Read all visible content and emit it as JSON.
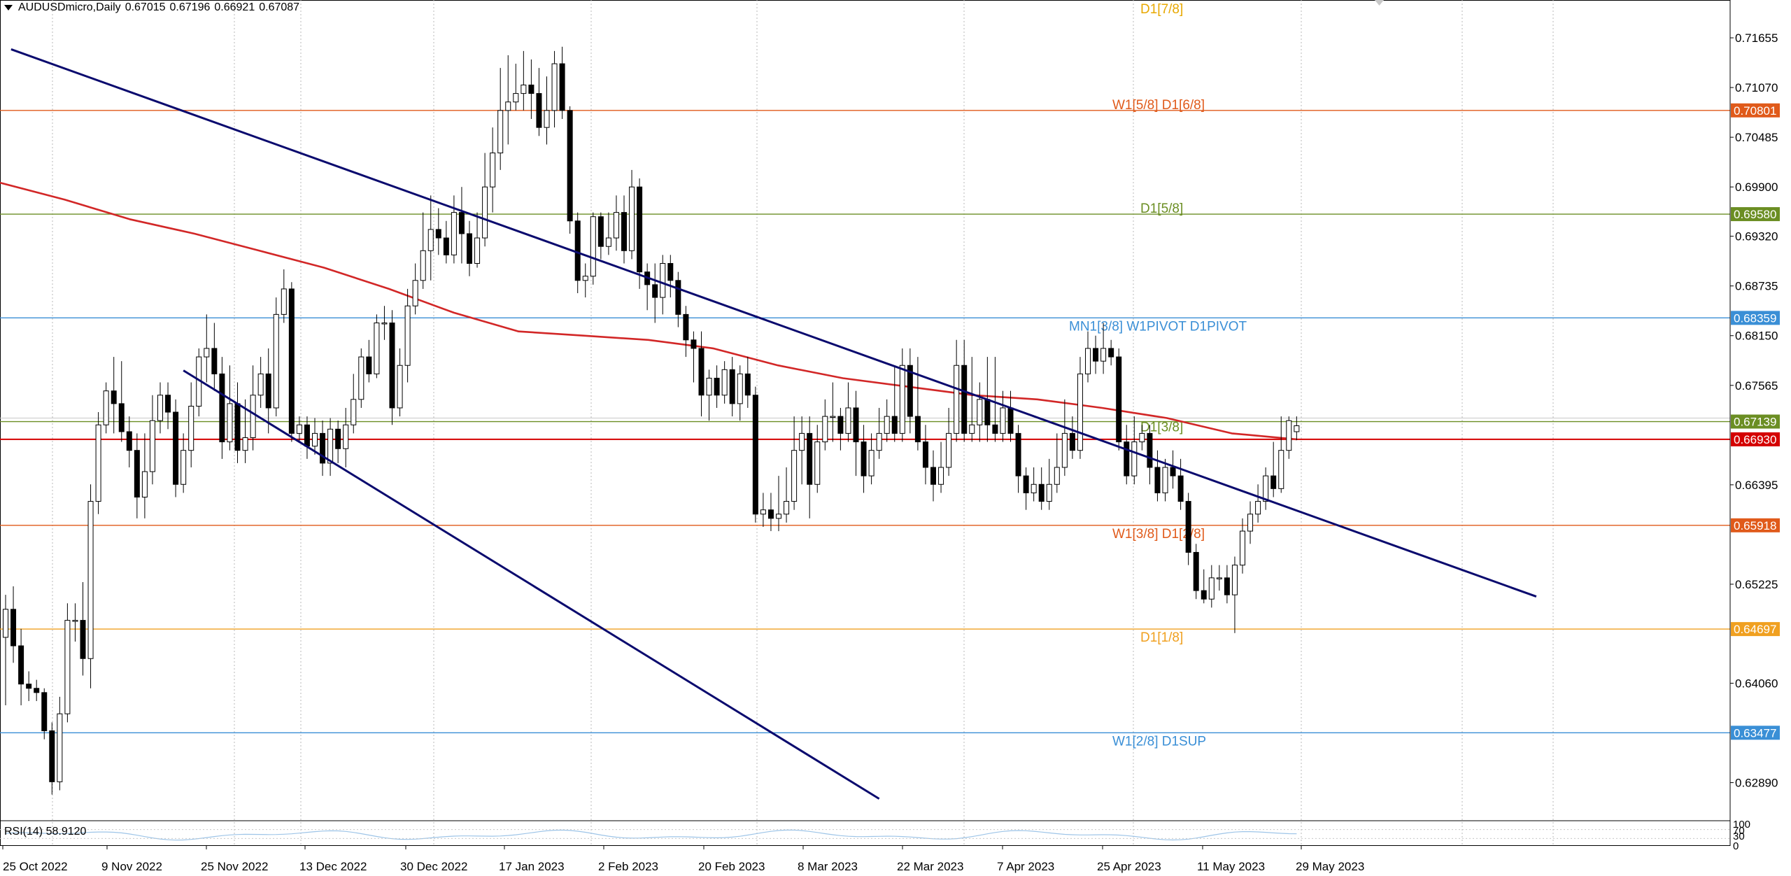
{
  "header": {
    "symbol": "AUDUSDmicro,Daily",
    "open": "0.67015",
    "high": "0.67196",
    "low": "0.66921",
    "close": "0.67087"
  },
  "rsi": {
    "label": "RSI(14) 58.9120",
    "levels": [
      "100",
      "70",
      "30",
      "0"
    ]
  },
  "colors": {
    "background": "#ffffff",
    "grid": "#b8b8b8",
    "bull_body": "#ffffff",
    "bear_body": "#000000",
    "wick": "#000000",
    "ma": "#d22727",
    "channel": "#0a0a6e",
    "axis_text": "#000000"
  },
  "chart_data": {
    "type": "candlestick",
    "y_axis_labels": [
      "0.71655",
      "0.71070",
      "0.70485",
      "0.69900",
      "0.69320",
      "0.68735",
      "0.68150",
      "0.67565",
      "0.66395",
      "0.65225",
      "0.64060",
      "0.62890"
    ],
    "ylim": [
      0.6245,
      0.721
    ],
    "x_axis_labels": [
      "25 Oct 2022",
      "9 Nov 2022",
      "25 Nov 2022",
      "13 Dec 2022",
      "30 Dec 2022",
      "17 Jan 2023",
      "2 Feb 2023",
      "20 Feb 2023",
      "8 Mar 2023",
      "22 Mar 2023",
      "7 Apr 2023",
      "25 Apr 2023",
      "11 May 2023",
      "29 May 2023"
    ],
    "levels": [
      {
        "label": "D1[7/8]",
        "price": null,
        "color": "#e8a800",
        "tag": ""
      },
      {
        "label": "W1[5/8] D1[6/8]",
        "price": 0.70801,
        "color": "#e05a1a",
        "tag": "0.70801"
      },
      {
        "label": "D1[5/8]",
        "price": 0.6958,
        "color": "#6b8e23",
        "tag": "0.69580"
      },
      {
        "label": "MN1[3/8] W1PIVOT D1PIVOT",
        "price": 0.68359,
        "color": "#3a8fd6",
        "tag": "0.68359"
      },
      {
        "label": "D1[3/8]",
        "price": 0.67139,
        "color": "#6b8e23",
        "tag": "0.67139"
      },
      {
        "label": "",
        "price": 0.6693,
        "color": "#d40000",
        "tag": "0.66930"
      },
      {
        "label": "W1[3/8] D1[2/8]",
        "price": 0.65918,
        "color": "#e05a1a",
        "tag": "0.65918"
      },
      {
        "label": "D1[1/8]",
        "price": 0.64697,
        "color": "#f0a020",
        "tag": "0.64697"
      },
      {
        "label": "W1[2/8] D1SUP",
        "price": 0.63477,
        "color": "#3a8fd6",
        "tag": "0.63477"
      }
    ],
    "ma200": [
      0.6995,
      0.6975,
      0.6952,
      0.6935,
      0.6915,
      0.6895,
      0.687,
      0.6842,
      0.682,
      0.6815,
      0.681,
      0.68,
      0.678,
      0.6765,
      0.6755,
      0.6745,
      0.674,
      0.673,
      0.6718,
      0.67,
      0.6693
    ],
    "channel_upper": [
      [
        0.713,
        0.7152
      ],
      [
        19.8,
        0.6508
      ]
    ],
    "channel_lower": [
      [
        2.3,
        0.6774
      ],
      [
        11.3,
        0.627
      ]
    ],
    "candles": [
      [
        0.646,
        0.6493,
        0.638,
        0.651
      ],
      [
        0.6493,
        0.645,
        0.643,
        0.652
      ],
      [
        0.645,
        0.6405,
        0.638,
        0.647
      ],
      [
        0.6405,
        0.64,
        0.6385,
        0.642
      ],
      [
        0.64,
        0.6395,
        0.6385,
        0.641
      ],
      [
        0.6395,
        0.635,
        0.634,
        0.64
      ],
      [
        0.635,
        0.629,
        0.6275,
        0.636
      ],
      [
        0.629,
        0.637,
        0.628,
        0.639
      ],
      [
        0.637,
        0.648,
        0.636,
        0.65
      ],
      [
        0.648,
        0.648,
        0.6455,
        0.65
      ],
      [
        0.648,
        0.6435,
        0.6415,
        0.6525
      ],
      [
        0.6435,
        0.662,
        0.64,
        0.664
      ],
      [
        0.662,
        0.671,
        0.6605,
        0.6725
      ],
      [
        0.671,
        0.675,
        0.67,
        0.676
      ],
      [
        0.675,
        0.6735,
        0.67,
        0.679
      ],
      [
        0.6735,
        0.6702,
        0.669,
        0.6785
      ],
      [
        0.6702,
        0.668,
        0.666,
        0.672
      ],
      [
        0.668,
        0.6625,
        0.66,
        0.67
      ],
      [
        0.6625,
        0.6655,
        0.66,
        0.67
      ],
      [
        0.6655,
        0.6715,
        0.664,
        0.6745
      ],
      [
        0.6715,
        0.6745,
        0.67,
        0.676
      ],
      [
        0.6745,
        0.6725,
        0.6705,
        0.676
      ],
      [
        0.6725,
        0.664,
        0.6625,
        0.674
      ],
      [
        0.664,
        0.668,
        0.663,
        0.67
      ],
      [
        0.668,
        0.6732,
        0.666,
        0.676
      ],
      [
        0.6732,
        0.679,
        0.672,
        0.68
      ],
      [
        0.679,
        0.68,
        0.676,
        0.684
      ],
      [
        0.68,
        0.677,
        0.675,
        0.683
      ],
      [
        0.677,
        0.669,
        0.667,
        0.679
      ],
      [
        0.669,
        0.6735,
        0.668,
        0.678
      ],
      [
        0.6735,
        0.668,
        0.6665,
        0.676
      ],
      [
        0.668,
        0.6695,
        0.6665,
        0.674
      ],
      [
        0.6695,
        0.6745,
        0.668,
        0.678
      ],
      [
        0.6745,
        0.677,
        0.673,
        0.679
      ],
      [
        0.677,
        0.673,
        0.67,
        0.68
      ],
      [
        0.673,
        0.684,
        0.672,
        0.686
      ],
      [
        0.684,
        0.687,
        0.683,
        0.6893
      ],
      [
        0.687,
        0.67,
        0.669,
        0.6878
      ],
      [
        0.67,
        0.671,
        0.669,
        0.672
      ],
      [
        0.671,
        0.6685,
        0.667,
        0.672
      ],
      [
        0.6685,
        0.67,
        0.6675,
        0.6718
      ],
      [
        0.67,
        0.6665,
        0.665,
        0.6715
      ],
      [
        0.6665,
        0.6705,
        0.665,
        0.6718
      ],
      [
        0.6705,
        0.6682,
        0.6665,
        0.6715
      ],
      [
        0.6682,
        0.671,
        0.666,
        0.673
      ],
      [
        0.671,
        0.674,
        0.67,
        0.677
      ],
      [
        0.674,
        0.679,
        0.673,
        0.68
      ],
      [
        0.679,
        0.677,
        0.676,
        0.681
      ],
      [
        0.677,
        0.683,
        0.6765,
        0.684
      ],
      [
        0.683,
        0.683,
        0.681,
        0.685
      ],
      [
        0.683,
        0.673,
        0.671,
        0.6845
      ],
      [
        0.673,
        0.678,
        0.672,
        0.68
      ],
      [
        0.678,
        0.685,
        0.676,
        0.687
      ],
      [
        0.685,
        0.688,
        0.684,
        0.69
      ],
      [
        0.688,
        0.6915,
        0.687,
        0.696
      ],
      [
        0.6915,
        0.694,
        0.688,
        0.698
      ],
      [
        0.694,
        0.693,
        0.691,
        0.6965
      ],
      [
        0.693,
        0.691,
        0.69,
        0.695
      ],
      [
        0.691,
        0.696,
        0.69,
        0.698
      ],
      [
        0.696,
        0.6935,
        0.69,
        0.699
      ],
      [
        0.6935,
        0.69,
        0.6885,
        0.695
      ],
      [
        0.69,
        0.693,
        0.6895,
        0.696
      ],
      [
        0.693,
        0.699,
        0.692,
        0.703
      ],
      [
        0.699,
        0.703,
        0.696,
        0.706
      ],
      [
        0.703,
        0.708,
        0.701,
        0.713
      ],
      [
        0.708,
        0.709,
        0.704,
        0.7145
      ],
      [
        0.709,
        0.71,
        0.708,
        0.7135
      ],
      [
        0.71,
        0.711,
        0.708,
        0.715
      ],
      [
        0.711,
        0.71,
        0.707,
        0.714
      ],
      [
        0.71,
        0.706,
        0.705,
        0.713
      ],
      [
        0.706,
        0.708,
        0.704,
        0.712
      ],
      [
        0.708,
        0.7135,
        0.706,
        0.715
      ],
      [
        0.7135,
        0.708,
        0.707,
        0.7155
      ],
      [
        0.708,
        0.695,
        0.6935,
        0.7085
      ],
      [
        0.695,
        0.688,
        0.6865,
        0.696
      ],
      [
        0.688,
        0.6885,
        0.686,
        0.69
      ],
      [
        0.6885,
        0.6955,
        0.6875,
        0.696
      ],
      [
        0.6955,
        0.692,
        0.6905,
        0.696
      ],
      [
        0.692,
        0.693,
        0.691,
        0.696
      ],
      [
        0.693,
        0.696,
        0.6915,
        0.698
      ],
      [
        0.696,
        0.6915,
        0.69,
        0.698
      ],
      [
        0.6915,
        0.699,
        0.6905,
        0.701
      ],
      [
        0.699,
        0.689,
        0.687,
        0.7
      ],
      [
        0.689,
        0.6875,
        0.6845,
        0.69
      ],
      [
        0.6875,
        0.686,
        0.683,
        0.69
      ],
      [
        0.686,
        0.69,
        0.684,
        0.691
      ],
      [
        0.69,
        0.688,
        0.686,
        0.691
      ],
      [
        0.688,
        0.684,
        0.6825,
        0.689
      ],
      [
        0.684,
        0.681,
        0.679,
        0.685
      ],
      [
        0.681,
        0.68,
        0.676,
        0.682
      ],
      [
        0.68,
        0.6745,
        0.672,
        0.682
      ],
      [
        0.6745,
        0.6765,
        0.6715,
        0.6775
      ],
      [
        0.6765,
        0.6745,
        0.673,
        0.678
      ],
      [
        0.6745,
        0.6775,
        0.6735,
        0.6785
      ],
      [
        0.6775,
        0.6735,
        0.672,
        0.679
      ],
      [
        0.6735,
        0.677,
        0.6715,
        0.678
      ],
      [
        0.677,
        0.6745,
        0.673,
        0.679
      ],
      [
        0.6745,
        0.6605,
        0.6595,
        0.6755
      ],
      [
        0.6605,
        0.661,
        0.659,
        0.663
      ],
      [
        0.661,
        0.66,
        0.6585,
        0.663
      ],
      [
        0.66,
        0.6605,
        0.6585,
        0.665
      ],
      [
        0.6605,
        0.662,
        0.6595,
        0.666
      ],
      [
        0.662,
        0.668,
        0.661,
        0.672
      ],
      [
        0.668,
        0.67,
        0.664,
        0.672
      ],
      [
        0.67,
        0.664,
        0.66,
        0.672
      ],
      [
        0.664,
        0.669,
        0.663,
        0.671
      ],
      [
        0.669,
        0.672,
        0.668,
        0.674
      ],
      [
        0.672,
        0.672,
        0.669,
        0.676
      ],
      [
        0.672,
        0.67,
        0.668,
        0.673
      ],
      [
        0.67,
        0.673,
        0.669,
        0.676
      ],
      [
        0.673,
        0.669,
        0.665,
        0.675
      ],
      [
        0.669,
        0.665,
        0.663,
        0.671
      ],
      [
        0.665,
        0.668,
        0.664,
        0.67
      ],
      [
        0.668,
        0.67,
        0.667,
        0.673
      ],
      [
        0.67,
        0.672,
        0.669,
        0.674
      ],
      [
        0.672,
        0.67,
        0.669,
        0.678
      ],
      [
        0.67,
        0.678,
        0.669,
        0.68
      ],
      [
        0.678,
        0.672,
        0.67,
        0.68
      ],
      [
        0.672,
        0.669,
        0.668,
        0.679
      ],
      [
        0.669,
        0.666,
        0.664,
        0.671
      ],
      [
        0.666,
        0.664,
        0.662,
        0.668
      ],
      [
        0.664,
        0.666,
        0.663,
        0.669
      ],
      [
        0.666,
        0.67,
        0.665,
        0.673
      ],
      [
        0.67,
        0.678,
        0.669,
        0.681
      ],
      [
        0.678,
        0.67,
        0.669,
        0.681
      ],
      [
        0.67,
        0.671,
        0.669,
        0.679
      ],
      [
        0.671,
        0.674,
        0.669,
        0.676
      ],
      [
        0.674,
        0.671,
        0.669,
        0.679
      ],
      [
        0.671,
        0.67,
        0.669,
        0.679
      ],
      [
        0.67,
        0.673,
        0.669,
        0.675
      ],
      [
        0.673,
        0.67,
        0.669,
        0.675
      ],
      [
        0.67,
        0.665,
        0.663,
        0.671
      ],
      [
        0.665,
        0.663,
        0.661,
        0.666
      ],
      [
        0.663,
        0.664,
        0.662,
        0.666
      ],
      [
        0.664,
        0.662,
        0.661,
        0.666
      ],
      [
        0.662,
        0.664,
        0.661,
        0.667
      ],
      [
        0.664,
        0.666,
        0.663,
        0.67
      ],
      [
        0.666,
        0.67,
        0.665,
        0.674
      ],
      [
        0.67,
        0.668,
        0.667,
        0.672
      ],
      [
        0.668,
        0.677,
        0.667,
        0.679
      ],
      [
        0.677,
        0.68,
        0.676,
        0.682
      ],
      [
        0.68,
        0.6785,
        0.677,
        0.6815
      ],
      [
        0.6785,
        0.68,
        0.677,
        0.683
      ],
      [
        0.68,
        0.679,
        0.678,
        0.681
      ],
      [
        0.679,
        0.669,
        0.668,
        0.68
      ],
      [
        0.669,
        0.665,
        0.664,
        0.671
      ],
      [
        0.665,
        0.669,
        0.664,
        0.672
      ],
      [
        0.669,
        0.67,
        0.668,
        0.671
      ],
      [
        0.67,
        0.666,
        0.664,
        0.671
      ],
      [
        0.666,
        0.663,
        0.662,
        0.668
      ],
      [
        0.663,
        0.666,
        0.662,
        0.667
      ],
      [
        0.666,
        0.665,
        0.6635,
        0.668
      ],
      [
        0.665,
        0.662,
        0.661,
        0.667
      ],
      [
        0.662,
        0.656,
        0.6545,
        0.663
      ],
      [
        0.656,
        0.6515,
        0.6505,
        0.657
      ],
      [
        0.6515,
        0.6505,
        0.65,
        0.654
      ],
      [
        0.6505,
        0.653,
        0.6495,
        0.6545
      ],
      [
        0.653,
        0.653,
        0.6515,
        0.6545
      ],
      [
        0.653,
        0.651,
        0.65,
        0.6545
      ],
      [
        0.651,
        0.6545,
        0.6465,
        0.6555
      ],
      [
        0.6545,
        0.6585,
        0.6535,
        0.66
      ],
      [
        0.6585,
        0.6605,
        0.657,
        0.662
      ],
      [
        0.6605,
        0.662,
        0.6595,
        0.664
      ],
      [
        0.662,
        0.665,
        0.661,
        0.666
      ],
      [
        0.665,
        0.6635,
        0.6625,
        0.669
      ],
      [
        0.6635,
        0.668,
        0.663,
        0.672
      ],
      [
        0.668,
        0.6715,
        0.667,
        0.672
      ],
      [
        0.6702,
        0.6709,
        0.6692,
        0.672
      ]
    ]
  }
}
